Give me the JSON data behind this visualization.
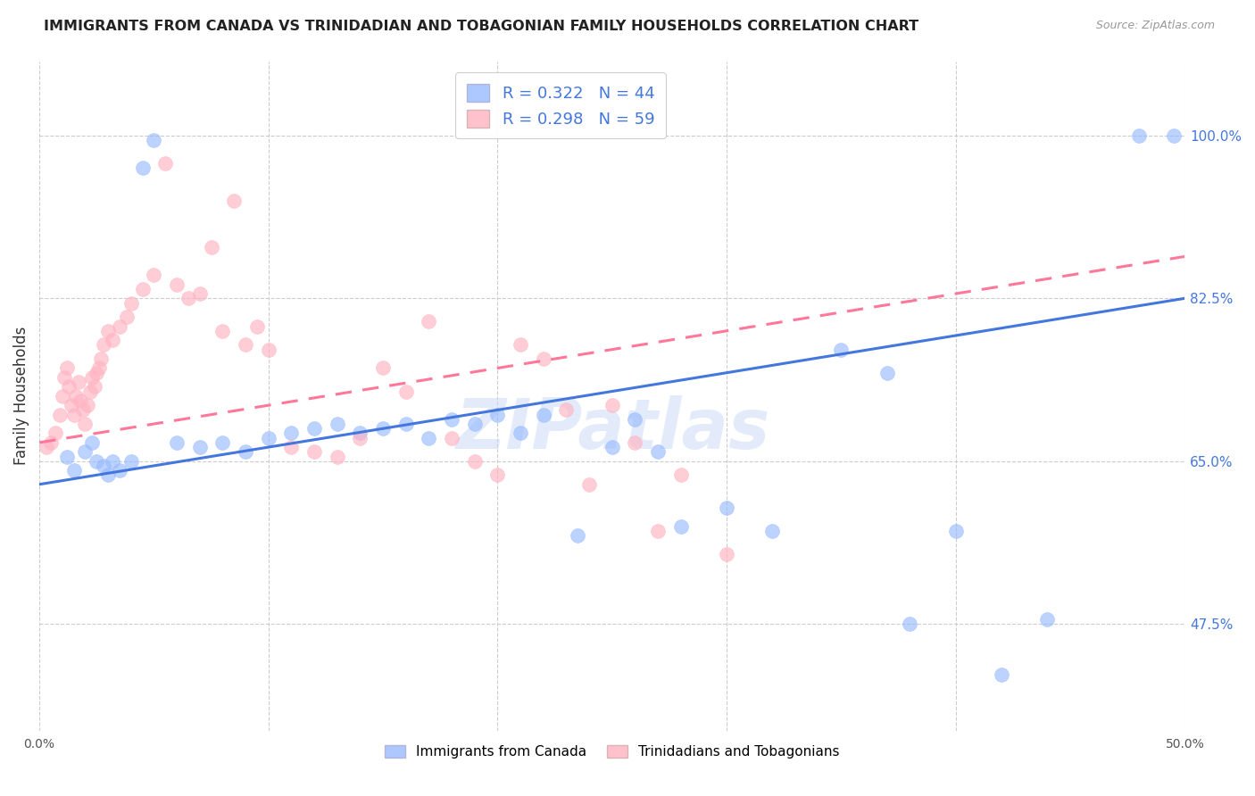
{
  "title": "IMMIGRANTS FROM CANADA VS TRINIDADIAN AND TOBAGONIAN FAMILY HOUSEHOLDS CORRELATION CHART",
  "source": "Source: ZipAtlas.com",
  "ylabel": "Family Households",
  "right_yticks": [
    47.5,
    65.0,
    82.5,
    100.0
  ],
  "right_ytick_labels": [
    "47.5%",
    "65.0%",
    "82.5%",
    "100.0%"
  ],
  "xmin": 0.0,
  "xmax": 50.0,
  "ymin": 36.0,
  "ymax": 108.0,
  "blue_color": "#99BBFF",
  "pink_color": "#FFB3C1",
  "blue_line_color": "#4477DD",
  "pink_line_color": "#FF7799",
  "watermark_color": "#C8D8F8",
  "watermark_alpha": 0.5,
  "blue_R": 0.322,
  "blue_N": 44,
  "pink_R": 0.298,
  "pink_N": 59,
  "blue_points_x": [
    1.2,
    1.5,
    2.0,
    2.3,
    2.5,
    2.8,
    3.0,
    3.2,
    3.5,
    4.0,
    4.5,
    5.0,
    6.0,
    7.0,
    8.0,
    9.0,
    10.0,
    11.0,
    12.0,
    13.0,
    14.0,
    15.0,
    16.0,
    17.0,
    18.0,
    19.0,
    20.0,
    21.0,
    22.0,
    23.5,
    25.0,
    26.0,
    27.0,
    28.0,
    30.0,
    32.0,
    35.0,
    37.0,
    38.0,
    40.0,
    42.0,
    44.0,
    48.0,
    49.5
  ],
  "blue_points_y": [
    65.5,
    64.0,
    66.0,
    67.0,
    65.0,
    64.5,
    63.5,
    65.0,
    64.0,
    65.0,
    96.5,
    99.5,
    67.0,
    66.5,
    67.0,
    66.0,
    67.5,
    68.0,
    68.5,
    69.0,
    68.0,
    68.5,
    69.0,
    67.5,
    69.5,
    69.0,
    70.0,
    68.0,
    70.0,
    57.0,
    66.5,
    69.5,
    66.0,
    58.0,
    60.0,
    57.5,
    77.0,
    74.5,
    47.5,
    57.5,
    42.0,
    48.0,
    100.0,
    100.0
  ],
  "pink_points_x": [
    0.3,
    0.5,
    0.7,
    0.9,
    1.0,
    1.1,
    1.2,
    1.3,
    1.4,
    1.5,
    1.6,
    1.7,
    1.8,
    1.9,
    2.0,
    2.1,
    2.2,
    2.3,
    2.4,
    2.5,
    2.6,
    2.7,
    2.8,
    3.0,
    3.2,
    3.5,
    3.8,
    4.0,
    4.5,
    5.0,
    5.5,
    6.0,
    6.5,
    7.0,
    7.5,
    8.0,
    8.5,
    9.0,
    9.5,
    10.0,
    11.0,
    12.0,
    13.0,
    14.0,
    15.0,
    16.0,
    17.0,
    18.0,
    19.0,
    20.0,
    21.0,
    22.0,
    23.0,
    24.0,
    25.0,
    26.0,
    27.0,
    28.0,
    30.0
  ],
  "pink_points_y": [
    66.5,
    67.0,
    68.0,
    70.0,
    72.0,
    74.0,
    75.0,
    73.0,
    71.0,
    70.0,
    72.0,
    73.5,
    71.5,
    70.5,
    69.0,
    71.0,
    72.5,
    74.0,
    73.0,
    74.5,
    75.0,
    76.0,
    77.5,
    79.0,
    78.0,
    79.5,
    80.5,
    82.0,
    83.5,
    85.0,
    97.0,
    84.0,
    82.5,
    83.0,
    88.0,
    79.0,
    93.0,
    77.5,
    79.5,
    77.0,
    66.5,
    66.0,
    65.5,
    67.5,
    75.0,
    72.5,
    80.0,
    67.5,
    65.0,
    63.5,
    77.5,
    76.0,
    70.5,
    62.5,
    71.0,
    67.0,
    57.5,
    63.5,
    55.0
  ],
  "blue_trend_x0": 0.0,
  "blue_trend_y0": 62.5,
  "blue_trend_x1": 50.0,
  "blue_trend_y1": 82.5,
  "pink_trend_x0": 0.0,
  "pink_trend_y0": 67.0,
  "pink_trend_x1": 50.0,
  "pink_trend_y1": 87.0
}
